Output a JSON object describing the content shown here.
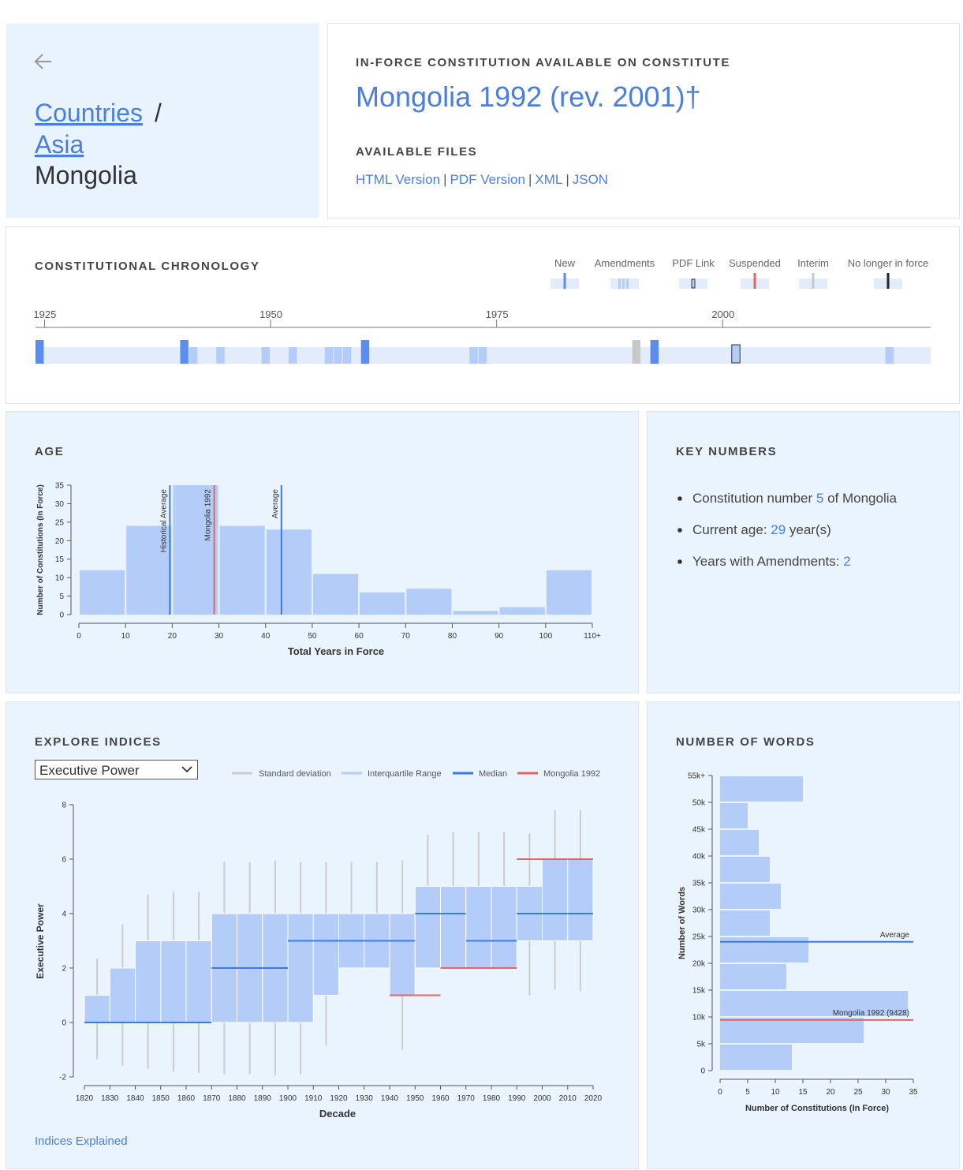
{
  "breadcrumb": {
    "links": [
      "Countries",
      "Asia"
    ],
    "separator": "/",
    "current": "Mongolia"
  },
  "constitution": {
    "label": "IN-FORCE CONSTITUTION AVAILABLE ON CONSTITUTE",
    "title": "Mongolia 1992 (rev. 2001)†",
    "files_label": "AVAILABLE FILES",
    "files": [
      "HTML Version",
      "PDF Version",
      "XML",
      "JSON"
    ],
    "separator": "|"
  },
  "key_numbers": {
    "title": "KEY NUMBERS",
    "items": [
      {
        "before": "Constitution number ",
        "value": 5,
        "after": " of Mongolia"
      },
      {
        "before": "Current age: ",
        "value": 29,
        "after": " year(s)"
      },
      {
        "before": "Years with Amendments: ",
        "value": 2
      }
    ]
  },
  "indices": {
    "selector": "Executive Power",
    "link": "Indices Explained"
  },
  "chart_data": [
    {
      "type": "timeline",
      "title": "CONSTITUTIONAL CHRONOLOGY",
      "legend": [
        {
          "name": "New",
          "color": "#5b8def"
        },
        {
          "name": "Amendments",
          "color": "#b4cdf8"
        },
        {
          "name": "PDF Link",
          "color": "#b4cdf8"
        },
        {
          "name": "Suspended",
          "color": "#e06666"
        },
        {
          "name": "Interim",
          "color": "#c8c8c8"
        },
        {
          "name": "No longer in force",
          "color": "#222222"
        }
      ],
      "xlim": [
        1924,
        2023
      ],
      "xticks": [
        1925,
        1950,
        1975,
        2000
      ],
      "events": {
        "x": [
          1924,
          1940,
          1941,
          1944,
          1949,
          1952,
          1956,
          1957,
          1958,
          1960,
          1972,
          1973,
          1990,
          1992,
          2001,
          2018
        ],
        "kind": [
          0,
          0,
          1,
          1,
          1,
          1,
          1,
          1,
          1,
          0,
          1,
          1,
          4,
          0,
          2,
          1
        ]
      }
    },
    {
      "type": "histogram",
      "title": "AGE",
      "xlabel": "Total Years in Force",
      "ylabel": "Number of Constitutions (In Force)",
      "bins": [
        0,
        10,
        20,
        30,
        40,
        50,
        60,
        70,
        80,
        90,
        100,
        110
      ],
      "counts": [
        12,
        24,
        35,
        24,
        23,
        11,
        6,
        7,
        1,
        2,
        12
      ],
      "color": "#b3cdf8",
      "xlim": [
        0,
        110
      ],
      "xticks": [
        0,
        10,
        20,
        30,
        40,
        50,
        60,
        70,
        80,
        90,
        100,
        {
          "value": 110,
          "label": "110+"
        }
      ],
      "ylim": [
        0,
        35
      ],
      "yticks": [
        0,
        5,
        10,
        15,
        20,
        25,
        30,
        35
      ],
      "reference_lines": [
        {
          "label": "Historical Average",
          "value": 19.5,
          "color": "#3b7ae0"
        },
        {
          "label": "Mongolia 1992",
          "value": 29,
          "color": "#e06666"
        },
        {
          "label": "Average",
          "value": 43.4,
          "color": "#3b7ae0"
        }
      ]
    },
    {
      "type": "box",
      "title": "EXPLORE INDICES",
      "xlabel": "Decade",
      "ylabel": "Executive Power",
      "color": "#b3cdf8",
      "legend": [
        {
          "name": "Standard deviation",
          "color": "#cccccc"
        },
        {
          "name": "Interquartile Range",
          "color": "#b3cdf8"
        },
        {
          "name": "Median",
          "color": "#3b7ae0"
        },
        {
          "name": "Mongolia 1992",
          "color": "#e06666"
        }
      ],
      "x": [
        1820,
        1830,
        1840,
        1850,
        1860,
        1870,
        1880,
        1890,
        1900,
        1910,
        1920,
        1930,
        1940,
        1950,
        1960,
        1970,
        1980,
        1990,
        2000,
        2010
      ],
      "q1": [
        0,
        0,
        0,
        0,
        0,
        0,
        0,
        0,
        0,
        1,
        2,
        2,
        1,
        2,
        2,
        2,
        2,
        3,
        3,
        3
      ],
      "q3": [
        1,
        2,
        3,
        3,
        3,
        4,
        4,
        4,
        4,
        4,
        4,
        4,
        4,
        5,
        5,
        5,
        5,
        5,
        6,
        6
      ],
      "median": [
        0,
        0,
        0,
        0,
        0,
        2,
        2,
        2,
        3,
        3,
        3,
        3,
        3,
        4,
        4,
        3,
        3,
        4,
        4,
        4
      ],
      "sd_low": [
        -1.35,
        -1.6,
        -1.7,
        -1.8,
        -1.85,
        -1.9,
        -1.9,
        -1.95,
        -1.9,
        -0.85,
        2,
        2,
        -1,
        2,
        2,
        2,
        2,
        1,
        1.2,
        1.15
      ],
      "sd_high": [
        2.35,
        3.6,
        4.7,
        4.8,
        4.8,
        5.9,
        5.9,
        5.95,
        5.9,
        5.9,
        5.9,
        5.9,
        5.95,
        6.9,
        7,
        7,
        7,
        6.95,
        7.8,
        7.8
      ],
      "mongolia": [
        null,
        null,
        null,
        null,
        null,
        null,
        null,
        null,
        null,
        null,
        null,
        null,
        1,
        1,
        2,
        2,
        2,
        6,
        6,
        6
      ],
      "xlim": [
        1820,
        2020
      ],
      "xticks": [
        1820,
        1830,
        1840,
        1850,
        1860,
        1870,
        1880,
        1890,
        1900,
        1910,
        1920,
        1930,
        1940,
        1950,
        1960,
        1970,
        1980,
        1990,
        2000,
        2010,
        2020
      ],
      "ylim": [
        -2,
        8
      ],
      "yticks": [
        -2,
        0,
        2,
        4,
        6,
        8
      ]
    },
    {
      "type": "histogram",
      "orientation": "horizontal",
      "title": "NUMBER OF WORDS",
      "xlabel": "Number of Constitutions (In Force)",
      "ylabel": "Number of Words",
      "bins": [
        0,
        5000,
        10000,
        15000,
        20000,
        25000,
        30000,
        35000,
        40000,
        45000,
        50000,
        55000
      ],
      "counts": [
        13,
        26,
        34,
        12,
        16,
        9,
        11,
        9,
        7,
        5,
        15
      ],
      "color": "#b3cdf8",
      "xlim": [
        0,
        35
      ],
      "xticks": [
        0,
        5,
        10,
        15,
        20,
        25,
        30,
        35
      ],
      "ylim": [
        0,
        55000
      ],
      "yticks": [
        0,
        {
          "value": 5000,
          "label": "5k"
        },
        {
          "value": 10000,
          "label": "10k"
        },
        {
          "value": 15000,
          "label": "15k"
        },
        {
          "value": 20000,
          "label": "20k"
        },
        {
          "value": 25000,
          "label": "25k"
        },
        {
          "value": 30000,
          "label": "30k"
        },
        {
          "value": 35000,
          "label": "35k"
        },
        {
          "value": 40000,
          "label": "40k"
        },
        {
          "value": 45000,
          "label": "45k"
        },
        {
          "value": 50000,
          "label": "50k"
        },
        {
          "value": 55000,
          "label": "55k+"
        }
      ],
      "reference_lines": [
        {
          "label": "Average",
          "value": 24000,
          "color": "#3b7ae0"
        },
        {
          "label": "Mongolia 1992 (9428)",
          "value": 9428,
          "color": "#e06666"
        }
      ]
    }
  ]
}
